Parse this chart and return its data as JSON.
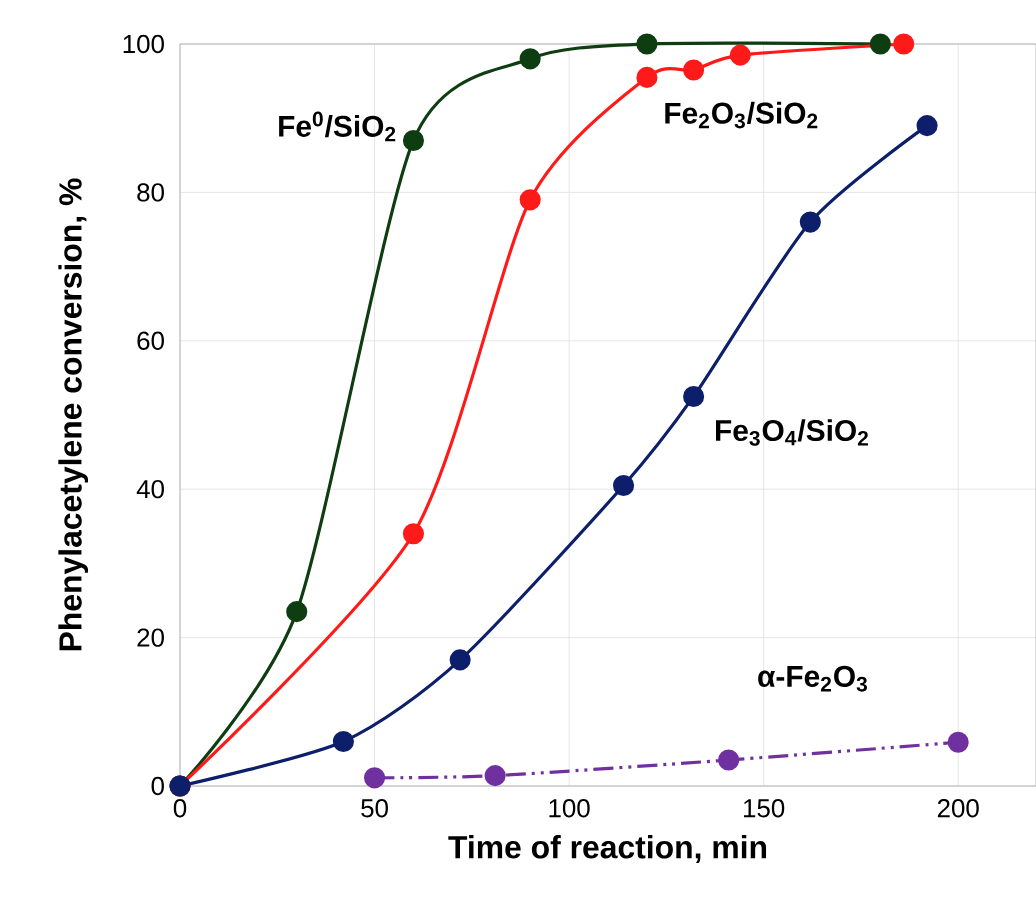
{
  "chart_data": {
    "type": "line",
    "xlabel": "Time of reaction, min",
    "ylabel": "Phenylacetylene conversion, %",
    "xlim": [
      0,
      220
    ],
    "xticks": [
      0,
      50,
      100,
      150,
      200
    ],
    "ylim": [
      0,
      100
    ],
    "yticks": [
      0,
      20,
      40,
      60,
      80,
      100
    ],
    "grid": true,
    "marker": "circle",
    "legend": false,
    "series": [
      {
        "name": "Fe$^{0}$/SiO$_{2}$",
        "color": "#0f3d12",
        "x": [
          0,
          30,
          60,
          90,
          120,
          180
        ],
        "values": [
          0,
          23.5,
          87,
          98,
          100,
          100
        ]
      },
      {
        "name": "Fe$_{2}$O$_{3}$/SiO$_{2}$",
        "color": "#ff1a1a",
        "x": [
          0,
          60,
          90,
          120,
          132,
          144,
          186
        ],
        "values": [
          0,
          34,
          79,
          95.5,
          96.5,
          98.5,
          100
        ]
      },
      {
        "name": "Fe$_{3}$O$_{4}$/SiO$_{2}$",
        "color": "#0d1f6b",
        "x": [
          0,
          42,
          72,
          114,
          132,
          162,
          192
        ],
        "values": [
          0,
          6,
          17,
          40.5,
          52.5,
          76,
          89
        ]
      },
      {
        "name": "α-Fe$_{2}$O$_{3}$",
        "color": "#7030a0",
        "line_style": "dashdot",
        "x": [
          50,
          81,
          141,
          200
        ],
        "values": [
          1.1,
          1.4,
          3.5,
          5.9
        ]
      }
    ]
  }
}
